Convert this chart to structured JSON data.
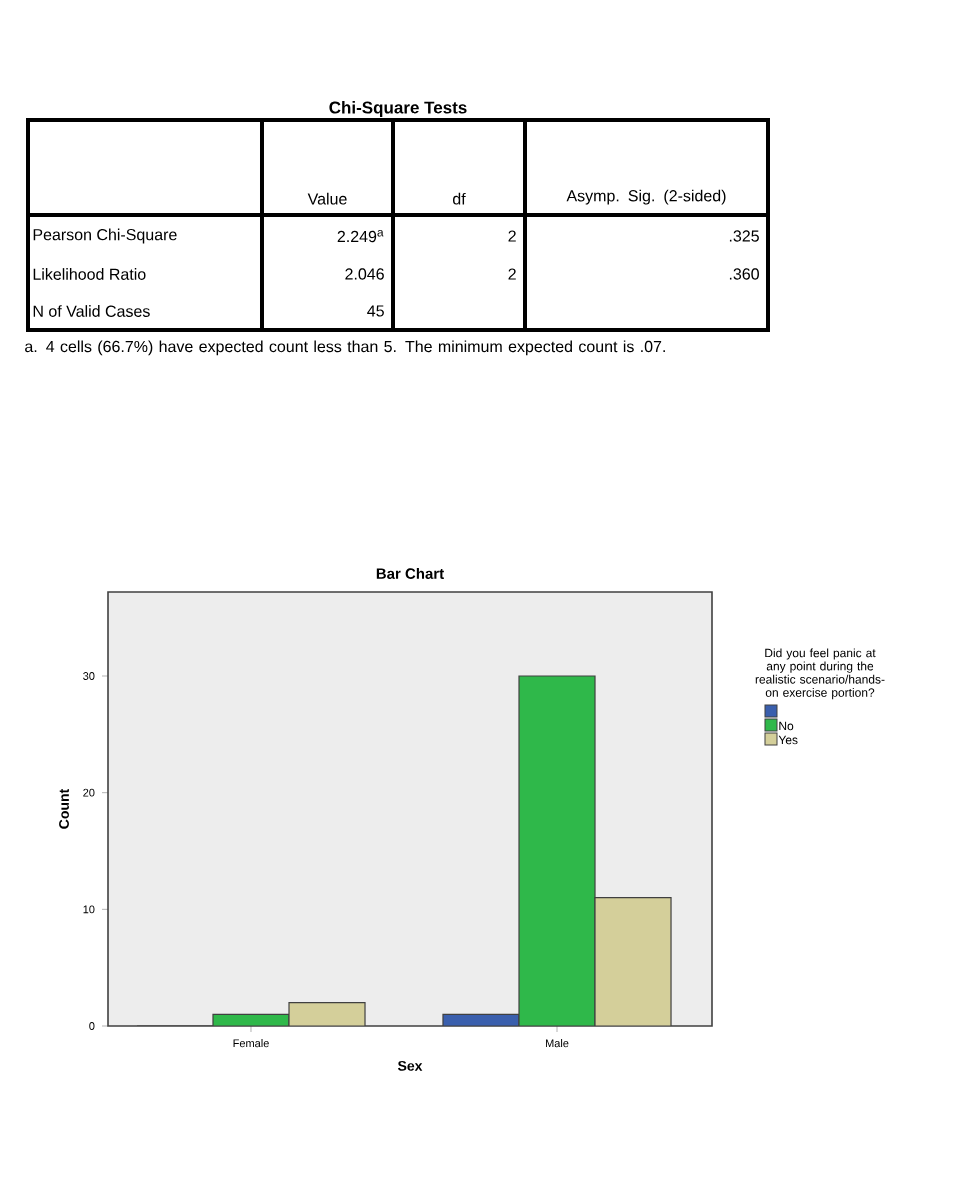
{
  "chart_data": [
    {
      "type": "other",
      "title": "Chi-Square Tests",
      "annotations": [
        "Value",
        "df",
        "Asymp. Sig. (2-sided)",
        "Pearson Chi-Square",
        "2.249$^{a}$",
        "2",
        ".325",
        "Likelihood Ratio",
        "2.046",
        "2",
        ".360",
        "N of Valid Cases",
        "45",
        "a. 4 cells (66.7%) have expected count less than 5. The minimum expected count is .07."
      ]
    },
    {
      "type": "bar",
      "title": "Bar Chart",
      "xlabel": "Sex",
      "ylabel": "Count",
      "legend_title": "Did you feel panic at any point during the realistic scenario/hands-on exercise portion?",
      "categories": [
        "Female",
        "Male"
      ],
      "ylim": [
        0,
        37.2
      ],
      "yticks": [
        0,
        10,
        20,
        30
      ],
      "legend": "right",
      "series": [
        {
          "color": "#3a5fad",
          "values": [
            0,
            1
          ]
        },
        {
          "name": "No",
          "color": "#2fb84a",
          "values": [
            1,
            30
          ]
        },
        {
          "name": "Yes",
          "color": "#d4cf9a",
          "values": [
            2,
            11
          ]
        }
      ]
    }
  ]
}
